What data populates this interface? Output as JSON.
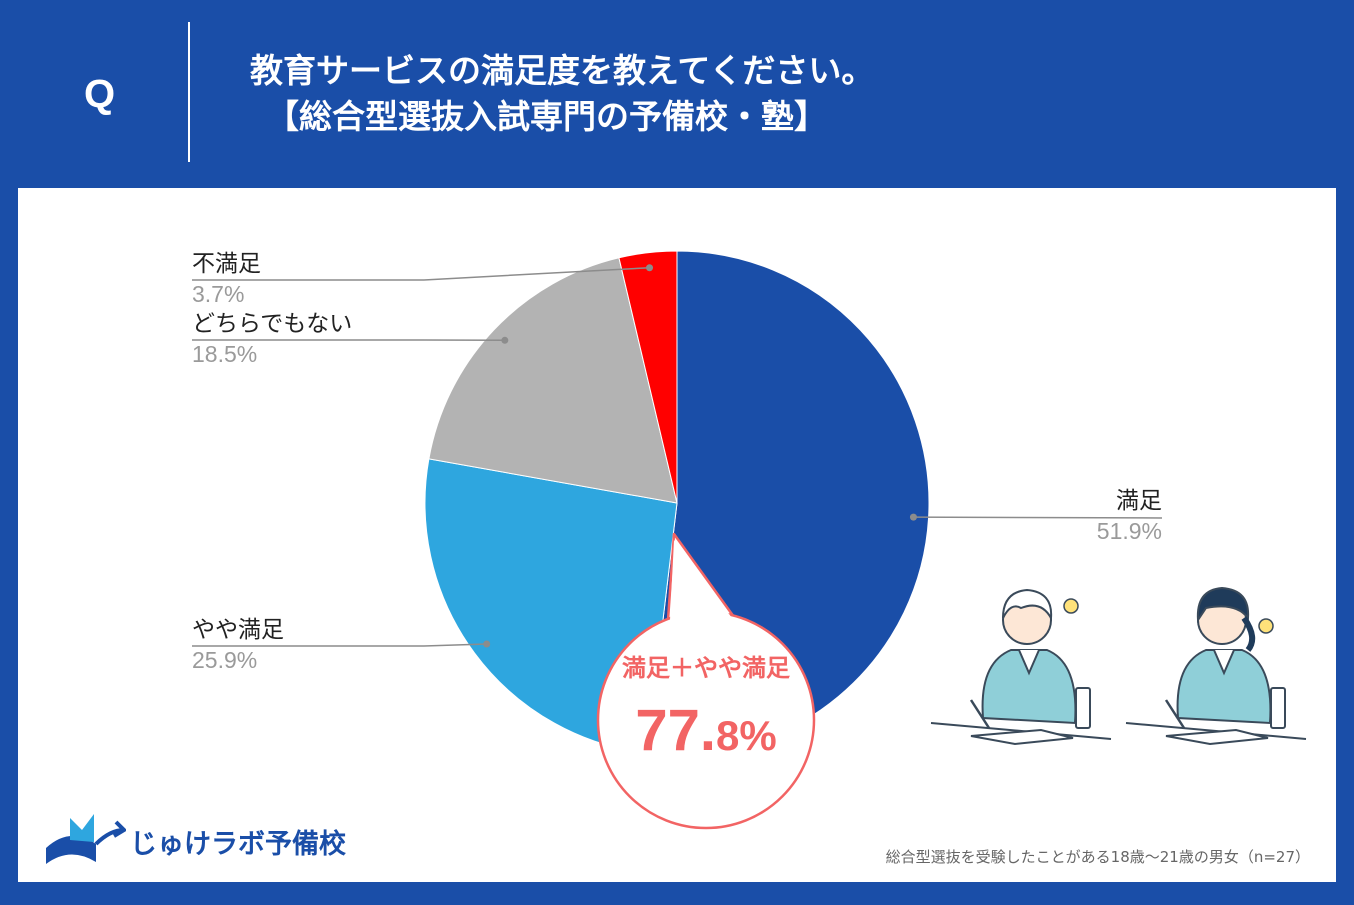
{
  "header": {
    "q_mark": "Q",
    "title_line1": "教育サービスの満足度を教えてください。",
    "title_line2": "【総合型選抜入試専門の予備校・塾】"
  },
  "colors": {
    "background": "#1a4ea8",
    "satisfied": "#1a4ea8",
    "somewhat_satisfied": "#2ea6df",
    "neutral": "#b3b3b3",
    "dissatisfied": "#ff0000",
    "callout": "#f26464"
  },
  "chart_data": {
    "type": "pie",
    "start": "12 o'clock, clockwise",
    "slices": [
      {
        "label": "満足",
        "value": 51.9,
        "display": "51.9%",
        "color": "#1a4ea8"
      },
      {
        "label": "やや満足",
        "value": 25.9,
        "display": "25.9%",
        "color": "#2ea6df"
      },
      {
        "label": "どちらでもない",
        "value": 18.5,
        "display": "18.5%",
        "color": "#b3b3b3"
      },
      {
        "label": "不満足",
        "value": 3.7,
        "display": "3.7%",
        "color": "#ff0000"
      }
    ]
  },
  "callout": {
    "title": "満足＋やや満足",
    "value_main": "77.",
    "value_small": "8%"
  },
  "logo": {
    "text": "じゅけラボ予備校",
    "icon": "book-logo-icon"
  },
  "illustration": {
    "icon": "students-studying-icon"
  },
  "footnote": "総合型選抜を受験したことがある18歳～21歳の男女（n=27）"
}
